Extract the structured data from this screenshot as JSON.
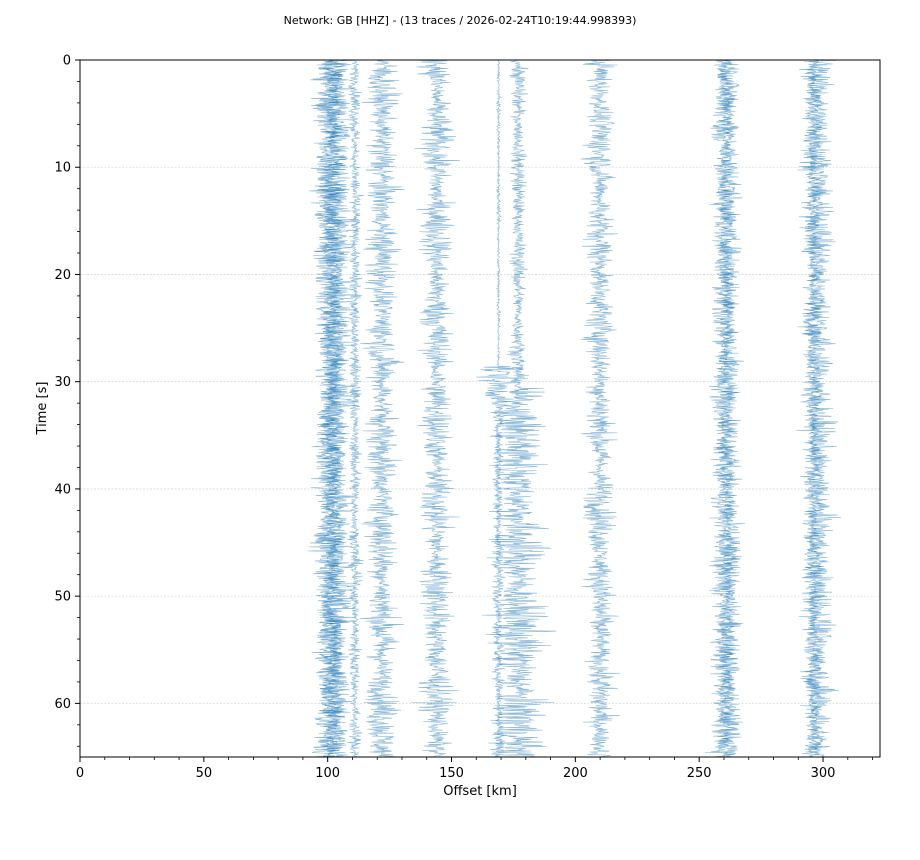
{
  "chart_data": {
    "type": "line",
    "title": "Network: GB [HHZ] - (13 traces / 2026-02-24T10:19:44.998393)",
    "xlabel": "Offset [km]",
    "ylabel": "Time [s]",
    "xlim": [
      0,
      323
    ],
    "ylim": [
      65,
      0
    ],
    "y_inverted": true,
    "grid": "horizontal",
    "xticks": [
      "0",
      "50",
      "100",
      "150",
      "200",
      "250",
      "300"
    ],
    "yticks": [
      "0",
      "10",
      "20",
      "30",
      "40",
      "50",
      "60"
    ],
    "colors": {
      "trace": "#1f77b4",
      "grid": "#d9d9d9",
      "axis": "#000000"
    },
    "series": [
      {
        "offset_km": 100,
        "amplitude_km": 8.5,
        "opacity": 0.55
      },
      {
        "offset_km": 102,
        "amplitude_km": 8.0,
        "opacity": 0.55
      },
      {
        "offset_km": 104,
        "amplitude_km": 8.5,
        "opacity": 0.55
      },
      {
        "offset_km": 111,
        "amplitude_km": 3.5,
        "opacity": 0.55
      },
      {
        "offset_km": 122,
        "amplitude_km": 9.5,
        "opacity": 0.55
      },
      {
        "offset_km": 144,
        "amplitude_km": 9.5,
        "opacity": 0.55
      },
      {
        "offset_km": 169,
        "amplitude_km": 1.0,
        "opacity": 0.55,
        "event_s": 29,
        "event_amp_km": 16
      },
      {
        "offset_km": 177,
        "amplitude_km": 4.5,
        "opacity": 0.55,
        "event_s": 31,
        "event_amp_km": 17
      },
      {
        "offset_km": 210,
        "amplitude_km": 8.5,
        "opacity": 0.55
      },
      {
        "offset_km": 260,
        "amplitude_km": 7.5,
        "opacity": 0.55
      },
      {
        "offset_km": 262,
        "amplitude_km": 7.0,
        "opacity": 0.55
      },
      {
        "offset_km": 298,
        "amplitude_km": 9.0,
        "opacity": 0.55
      },
      {
        "offset_km": 296,
        "amplitude_km": 5.5,
        "opacity": 0.55
      }
    ]
  }
}
